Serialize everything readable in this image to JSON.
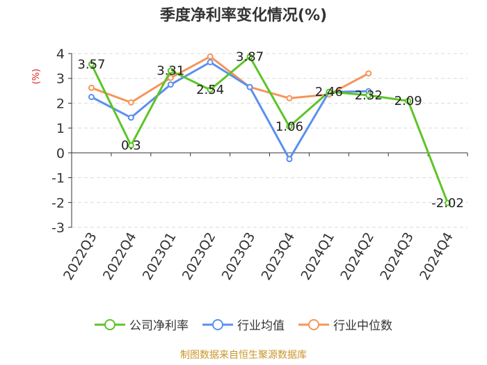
{
  "chart_data": {
    "type": "line",
    "title": "季度净利率变化情况(%)",
    "ylabel": "(%)",
    "categories": [
      "2022Q3",
      "2022Q4",
      "2023Q1",
      "2023Q2",
      "2023Q3",
      "2023Q4",
      "2024Q1",
      "2024Q2",
      "2024Q3",
      "2024Q4"
    ],
    "ylim": [
      -3,
      4
    ],
    "yticks": [
      -3,
      -2,
      -1,
      0,
      1,
      2,
      3,
      4
    ],
    "grid": true,
    "legend_position": "bottom",
    "series": [
      {
        "name": "公司净利率",
        "color": "#5cc427",
        "values": [
          3.57,
          0.3,
          3.31,
          2.54,
          3.87,
          1.06,
          2.46,
          2.32,
          2.09,
          -2.02
        ],
        "labels": [
          "3.57",
          "0.3",
          "3.31",
          "2.54",
          "3.87",
          "1.06",
          "2.46",
          "2.32",
          "2.09",
          "-2.02"
        ]
      },
      {
        "name": "行业均值",
        "color": "#5b8ff0",
        "values": [
          2.25,
          1.42,
          2.75,
          3.65,
          2.65,
          -0.25,
          2.45,
          2.48,
          null,
          null
        ]
      },
      {
        "name": "行业中位数",
        "color": "#f5955a",
        "values": [
          2.62,
          2.03,
          3.02,
          3.88,
          2.65,
          2.2,
          2.35,
          3.2,
          null,
          null
        ]
      }
    ]
  },
  "source": "制图数据来自恒生聚源数据库"
}
